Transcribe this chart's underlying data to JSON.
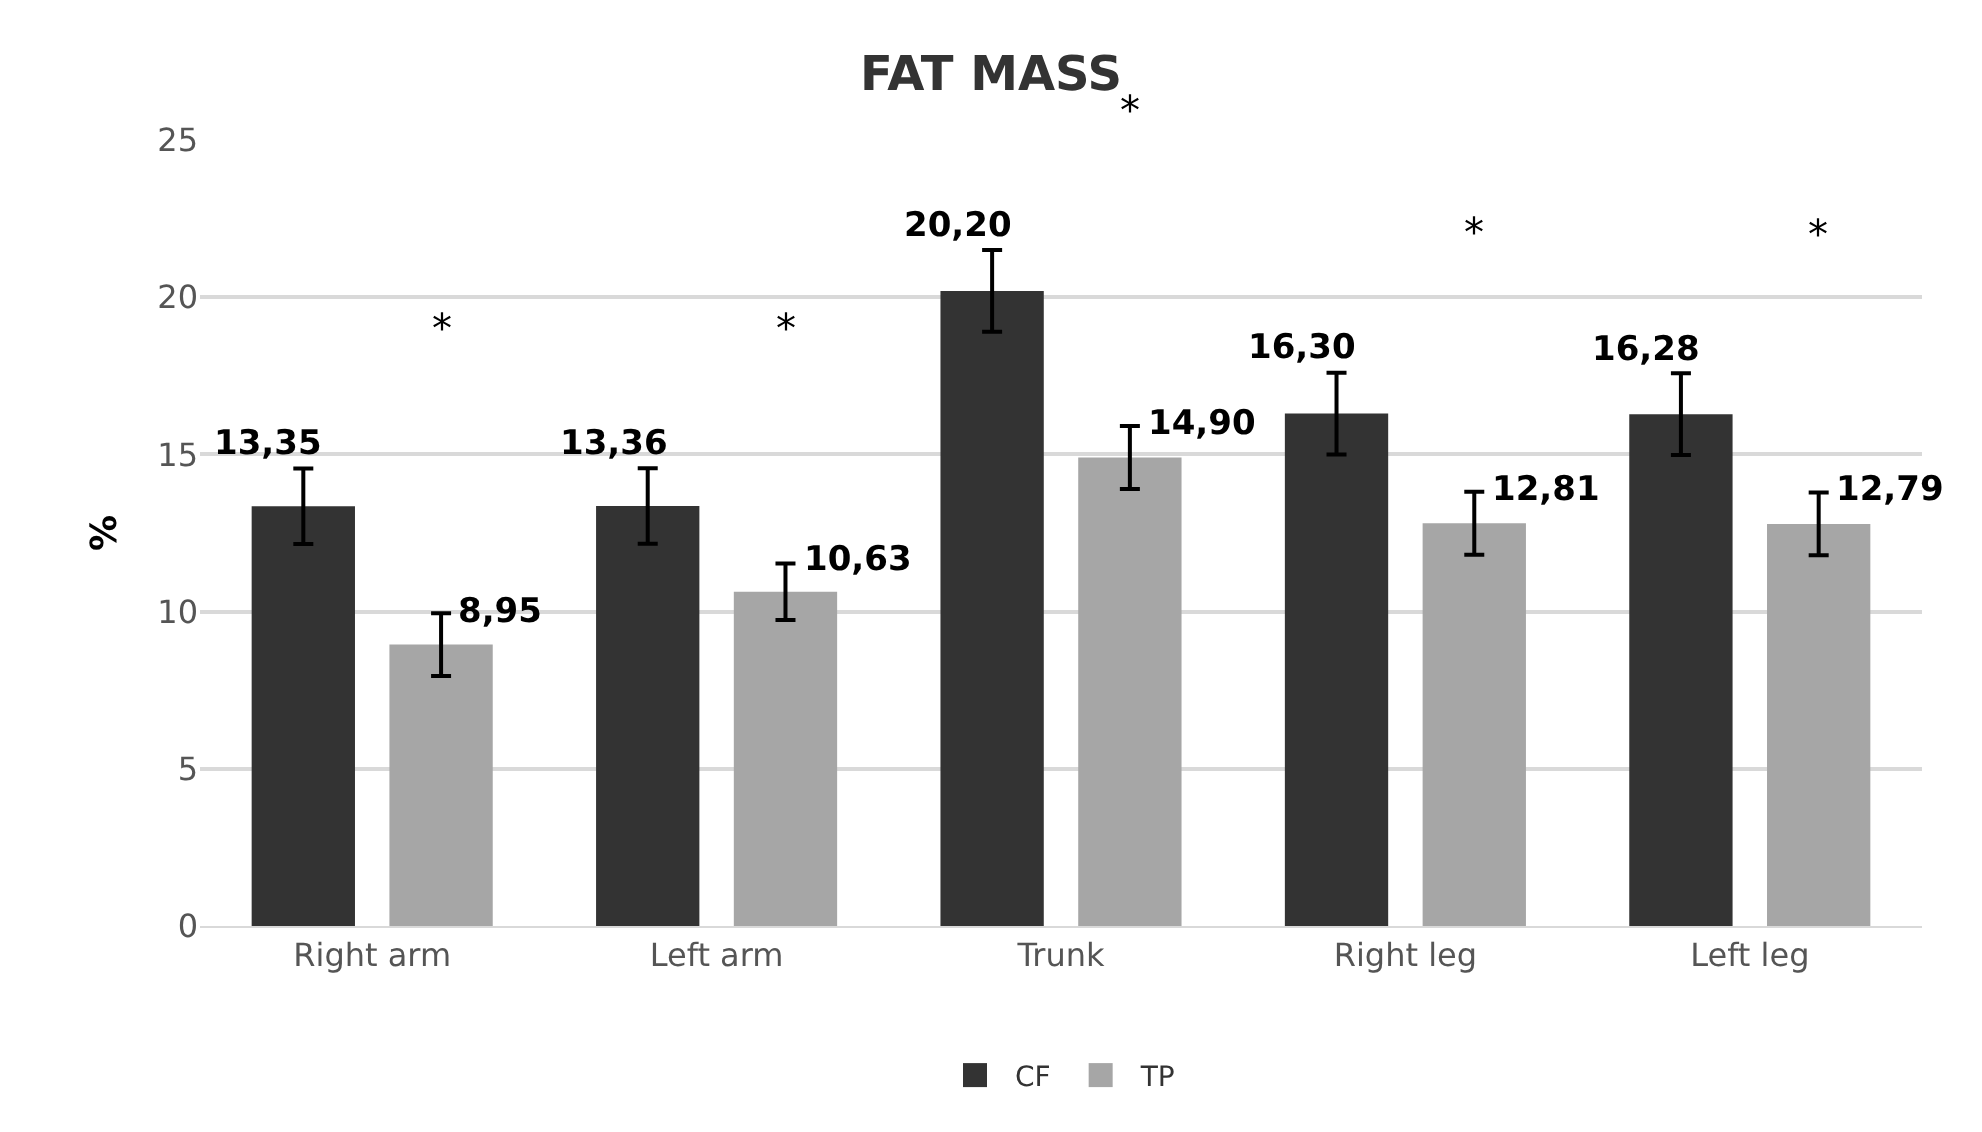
{
  "chart_data": {
    "type": "bar",
    "title": "FAT MASS",
    "ylabel": "%",
    "categories": [
      "Right arm",
      "Left arm",
      "Trunk",
      "Right leg",
      "Left leg"
    ],
    "series": [
      {
        "name": "CF",
        "color": "#333333",
        "values": [
          13.35,
          13.36,
          20.2,
          16.3,
          16.28
        ],
        "errors": [
          1.2,
          1.2,
          1.3,
          1.3,
          1.3
        ],
        "value_labels": [
          "13,35",
          "13,36",
          "20,20",
          "16,30",
          "16,28"
        ]
      },
      {
        "name": "TP",
        "color": "#a6a6a6",
        "values": [
          8.95,
          10.63,
          14.9,
          12.81,
          12.79
        ],
        "errors": [
          1.0,
          0.9,
          1.0,
          1.0,
          1.0
        ],
        "value_labels": [
          "8,95",
          "10,63",
          "14,90",
          "12,81",
          "12,79"
        ]
      }
    ],
    "annotations": [
      "*",
      "*",
      "*",
      "*",
      "*"
    ],
    "ylim": [
      0,
      25
    ],
    "yticks": [
      0,
      5,
      10,
      15,
      20,
      25
    ],
    "grid": "y",
    "legend": "bottom"
  }
}
